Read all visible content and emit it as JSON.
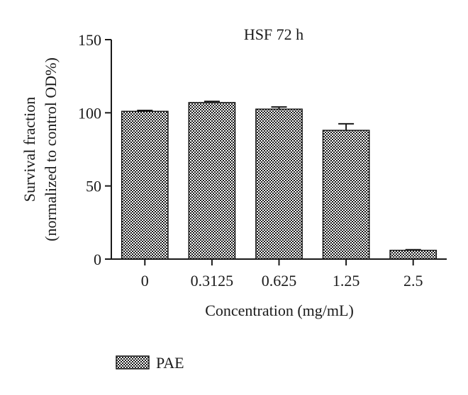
{
  "chart_data": {
    "type": "bar",
    "title": "HSF 72 h",
    "xlabel": "Concentration (mg/mL)",
    "ylabel_line1": "Survival fraction",
    "ylabel_line2": "(normalized to control OD%)",
    "categories": [
      "0",
      "0.3125",
      "0.625",
      "1.25",
      "2.5"
    ],
    "series": [
      {
        "name": "PAE",
        "values": [
          101,
          107,
          102.5,
          88,
          6
        ],
        "errors": [
          0.6,
          0.8,
          1.5,
          4.5,
          0.4
        ]
      }
    ],
    "ylim": [
      0,
      150
    ],
    "yticks": [
      "0",
      "50",
      "100",
      "150"
    ],
    "grid": false,
    "legend_position": "bottom-left",
    "bar_fill": "checkered",
    "colors": {
      "bar_dark": "#1a1a1a",
      "bar_light": "#ffffff",
      "axis": "#1a1a1a"
    }
  }
}
